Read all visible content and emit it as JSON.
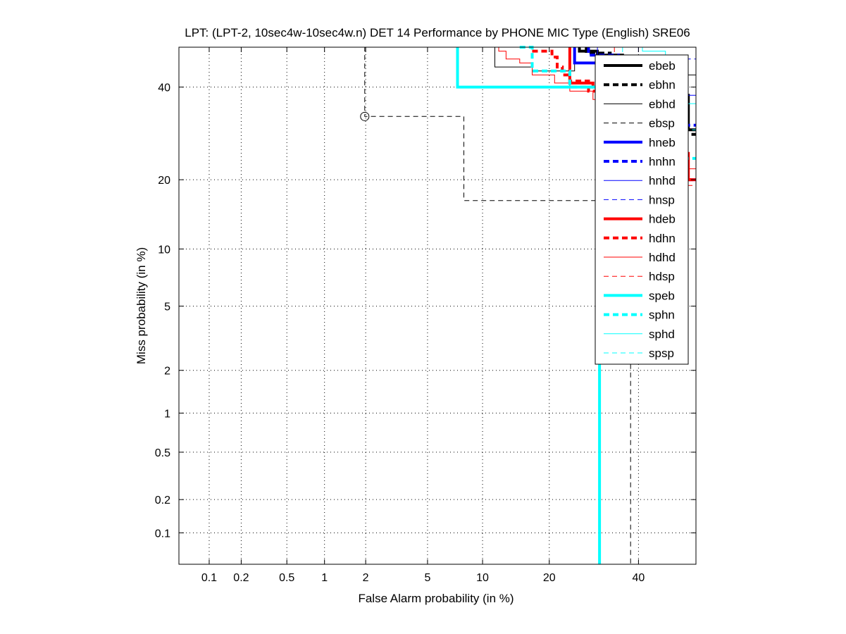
{
  "chart_data": {
    "type": "line",
    "title": "LPT: (LPT-2, 10sec4w-10sec4w.n) DET 14 Performance by PHONE MIC Type (English) SRE06",
    "xlabel": "False Alarm probability (in %)",
    "ylabel": "Miss probability (in %)",
    "scale": "normal-deviate (DET)",
    "xlim": [
      0.05,
      55
    ],
    "ylim": [
      0.05,
      50
    ],
    "grid": true,
    "x_ticks": [
      0.1,
      0.2,
      0.5,
      1,
      2,
      5,
      10,
      20,
      40
    ],
    "x_tick_labels": [
      "0.1",
      "0.2",
      "0.5",
      "1",
      "2",
      "5",
      "10",
      "20",
      "40"
    ],
    "y_ticks": [
      0.1,
      0.2,
      0.5,
      1,
      2,
      5,
      10,
      20,
      40
    ],
    "y_tick_labels": [
      "0.1",
      "0.2",
      "0.5",
      "1",
      "2",
      "5",
      "10",
      "20",
      "40"
    ],
    "legend_position": "top-right",
    "series": [
      {
        "name": "ebeb",
        "color": "#000000",
        "style": "solid-thick",
        "points": [
          [
            26,
            50
          ],
          [
            26,
            49
          ],
          [
            30,
            49
          ],
          [
            30,
            48
          ],
          [
            36,
            48
          ],
          [
            36,
            46
          ],
          [
            42,
            46
          ],
          [
            42,
            44
          ],
          [
            48,
            44
          ],
          [
            48,
            38
          ],
          [
            53,
            38
          ],
          [
            53,
            30
          ],
          [
            55,
            30
          ]
        ]
      },
      {
        "name": "ebhn",
        "color": "#000000",
        "style": "dashed-thick",
        "points": [
          [
            27.5,
            50
          ],
          [
            27.5,
            48.5
          ],
          [
            33,
            48.5
          ],
          [
            33,
            46
          ],
          [
            40,
            46
          ],
          [
            40,
            40
          ],
          [
            47,
            40
          ],
          [
            47,
            34
          ],
          [
            51,
            34
          ],
          [
            51,
            29
          ],
          [
            55,
            29
          ]
        ]
      },
      {
        "name": "ebhd",
        "color": "#000000",
        "style": "solid-thin",
        "points": [
          [
            10.5,
            50
          ],
          [
            11.5,
            50
          ],
          [
            11.5,
            45
          ],
          [
            17,
            45
          ],
          [
            17,
            44
          ],
          [
            25,
            44
          ],
          [
            25,
            46
          ],
          [
            34,
            46
          ],
          [
            34,
            44
          ],
          [
            46,
            44
          ],
          [
            46,
            43
          ],
          [
            55,
            43
          ]
        ]
      },
      {
        "name": "ebsp",
        "color": "#000000",
        "style": "dashed-thin",
        "points": [
          [
            0.6,
            50
          ],
          [
            1.97,
            50
          ],
          [
            1.97,
            33
          ],
          [
            8,
            33
          ],
          [
            8,
            16.5
          ],
          [
            32,
            16.5
          ],
          [
            32,
            14
          ],
          [
            38,
            14
          ],
          [
            38,
            0.05
          ]
        ]
      },
      {
        "name": "hneb",
        "color": "#0000ff",
        "style": "solid-thick",
        "points": [
          [
            25,
            50
          ],
          [
            25,
            46
          ],
          [
            31,
            46
          ],
          [
            31,
            44
          ],
          [
            40,
            44
          ],
          [
            40,
            38
          ],
          [
            48,
            38
          ],
          [
            48,
            31
          ],
          [
            52,
            31
          ],
          [
            52,
            20
          ],
          [
            55,
            20
          ]
        ]
      },
      {
        "name": "hnhn",
        "color": "#0000ff",
        "style": "dashed-thick",
        "points": [
          [
            28,
            50
          ],
          [
            28,
            48
          ],
          [
            35,
            48
          ],
          [
            35,
            45
          ],
          [
            42,
            45
          ],
          [
            42,
            38
          ],
          [
            49,
            38
          ],
          [
            49,
            32
          ],
          [
            52,
            32
          ],
          [
            52,
            31
          ],
          [
            55,
            31
          ]
        ]
      },
      {
        "name": "hnhd",
        "color": "#0000ff",
        "style": "solid-thin",
        "points": [
          [
            30,
            50
          ],
          [
            30,
            47.5
          ],
          [
            40,
            47.5
          ],
          [
            40,
            46
          ],
          [
            48,
            46
          ],
          [
            48,
            38
          ],
          [
            55,
            38
          ]
        ]
      },
      {
        "name": "hnsp",
        "color": "#0000ff",
        "style": "dashed-thin",
        "points": [
          [
            40,
            50
          ],
          [
            40,
            48
          ],
          [
            50,
            48
          ],
          [
            50,
            47
          ],
          [
            55,
            47
          ]
        ]
      },
      {
        "name": "hdeb",
        "color": "#ff0000",
        "style": "solid-thick",
        "points": [
          [
            24,
            50
          ],
          [
            24,
            41
          ],
          [
            29,
            41
          ],
          [
            29,
            40
          ],
          [
            33,
            40
          ],
          [
            33,
            37
          ],
          [
            40,
            37
          ],
          [
            40,
            34
          ],
          [
            45,
            34
          ],
          [
            45,
            30
          ],
          [
            50,
            30
          ],
          [
            50,
            25
          ],
          [
            53,
            25
          ],
          [
            53,
            20
          ],
          [
            55,
            20
          ]
        ]
      },
      {
        "name": "hdhn",
        "color": "#ff0000",
        "style": "dashed-thick",
        "points": [
          [
            17,
            49
          ],
          [
            20.5,
            49
          ],
          [
            20.5,
            47.5
          ],
          [
            21.5,
            47.5
          ],
          [
            21.5,
            45
          ],
          [
            22.5,
            45
          ],
          [
            22.5,
            43
          ],
          [
            24,
            43
          ],
          [
            24,
            41.5
          ],
          [
            28,
            41.5
          ],
          [
            28,
            39
          ],
          [
            36,
            39
          ],
          [
            36,
            37
          ],
          [
            43,
            37
          ],
          [
            43,
            34
          ],
          [
            48,
            34
          ],
          [
            48,
            30
          ],
          [
            52,
            30
          ],
          [
            52,
            20
          ],
          [
            55,
            20
          ]
        ]
      },
      {
        "name": "hdhd",
        "color": "#ff0000",
        "style": "solid-thin",
        "points": [
          [
            12,
            50
          ],
          [
            12,
            49
          ],
          [
            13,
            49
          ],
          [
            13,
            47
          ],
          [
            15,
            47
          ],
          [
            15,
            46
          ],
          [
            17,
            46
          ],
          [
            17,
            43
          ],
          [
            21,
            43
          ],
          [
            21,
            41
          ],
          [
            24,
            41
          ],
          [
            24,
            39
          ],
          [
            29,
            39
          ],
          [
            29,
            37
          ],
          [
            40,
            37
          ],
          [
            40,
            33
          ],
          [
            46,
            33
          ],
          [
            46,
            28
          ],
          [
            50,
            28
          ],
          [
            50,
            22
          ],
          [
            55,
            22
          ]
        ]
      },
      {
        "name": "hdsp",
        "color": "#ff0000",
        "style": "dashed-thin",
        "points": [
          [
            34,
            50
          ],
          [
            34,
            46
          ],
          [
            40,
            46
          ],
          [
            40,
            43
          ],
          [
            46,
            43
          ],
          [
            46,
            36
          ],
          [
            52,
            36
          ],
          [
            52,
            19
          ],
          [
            55,
            19
          ]
        ]
      },
      {
        "name": "speb",
        "color": "#00ffff",
        "style": "solid-thick",
        "points": [
          [
            7.4,
            50
          ],
          [
            7.4,
            40
          ],
          [
            30.5,
            40
          ],
          [
            30.5,
            0.05
          ]
        ]
      },
      {
        "name": "sphn",
        "color": "#00ffff",
        "style": "dashed-thick",
        "points": [
          [
            15,
            50
          ],
          [
            17,
            50
          ],
          [
            17,
            44
          ],
          [
            24,
            44
          ],
          [
            24,
            40
          ],
          [
            32,
            40
          ],
          [
            32,
            38
          ],
          [
            36,
            38
          ],
          [
            36,
            30
          ],
          [
            42,
            30
          ],
          [
            42,
            24
          ],
          [
            55,
            24
          ]
        ]
      },
      {
        "name": "sphd",
        "color": "#00ffff",
        "style": "solid-thin",
        "points": [
          [
            41,
            50
          ],
          [
            41,
            49
          ],
          [
            47,
            49
          ],
          [
            47,
            42
          ],
          [
            52,
            42
          ],
          [
            52,
            36
          ],
          [
            55,
            36
          ]
        ]
      },
      {
        "name": "spsp",
        "color": "#00ffff",
        "style": "dashed-thin",
        "points": [
          [
            36,
            50
          ],
          [
            36,
            45
          ],
          [
            43,
            45
          ],
          [
            43,
            34
          ],
          [
            49,
            34
          ],
          [
            49,
            30
          ],
          [
            55,
            30
          ]
        ]
      }
    ],
    "annotations": [
      {
        "series": "ebsp",
        "marker": "open-circle",
        "x": 1.97,
        "y": 33
      }
    ]
  }
}
